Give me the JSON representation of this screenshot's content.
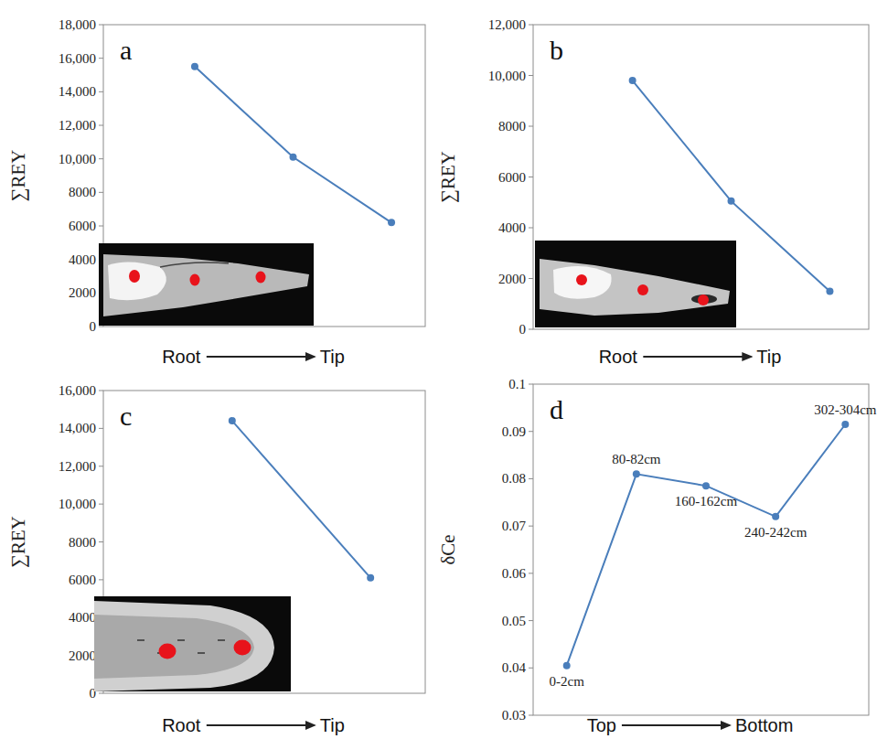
{
  "chart_data": [
    {
      "type": "line",
      "title": "a",
      "ylabel": "∑REY",
      "xlabel": {
        "from": "Root",
        "to": "Tip"
      },
      "categories": [
        null,
        null,
        null
      ],
      "values": [
        15500,
        10100,
        6200
      ],
      "color": "#4a7ebb",
      "marker": "circle",
      "grid": false,
      "tick_labels": "y",
      "ylim": [
        0,
        18000
      ],
      "yticks": [
        0,
        2000,
        4000,
        6000,
        8000,
        {
          "value": 10000,
          "label": "10,000"
        },
        {
          "value": 12000,
          "label": "12,000"
        },
        {
          "value": 14000,
          "label": "14,000"
        },
        {
          "value": 16000,
          "label": "16,000"
        },
        {
          "value": 18000,
          "label": "18,000"
        }
      ]
    },
    {
      "type": "line",
      "title": "b",
      "ylabel": "∑REY",
      "xlabel": {
        "from": "Root",
        "to": "Tip"
      },
      "categories": [
        null,
        null,
        null
      ],
      "values": [
        9800,
        5050,
        1500
      ],
      "color": "#4a7ebb",
      "marker": "circle",
      "grid": false,
      "tick_labels": "y",
      "ylim": [
        0,
        12000
      ],
      "yticks": [
        0,
        2000,
        4000,
        6000,
        8000,
        {
          "value": 10000,
          "label": "10,000"
        },
        {
          "value": 12000,
          "label": "12,000"
        }
      ]
    },
    {
      "type": "line",
      "title": "c",
      "ylabel": "∑REY",
      "xlabel": {
        "from": "Root",
        "to": "Tip"
      },
      "categories": [
        null,
        null
      ],
      "values": [
        14400,
        6100
      ],
      "color": "#4a7ebb",
      "marker": "circle",
      "grid": false,
      "tick_labels": "y",
      "ylim": [
        0,
        16000
      ],
      "yticks": [
        0,
        2000,
        4000,
        6000,
        8000,
        {
          "value": 10000,
          "label": "10,000"
        },
        {
          "value": 12000,
          "label": "12,000"
        },
        {
          "value": 14000,
          "label": "14,000"
        },
        {
          "value": 16000,
          "label": "16,000"
        }
      ]
    },
    {
      "type": "line",
      "title": "d",
      "ylabel": "δCe",
      "xlabel": {
        "from": "Top",
        "to": "Bottom"
      },
      "categories": [
        "0-2cm",
        "80-82cm",
        "160-162cm",
        "240-242cm",
        "302-304cm"
      ],
      "values": [
        0.0405,
        0.081,
        0.0785,
        0.072,
        0.0915
      ],
      "color": "#4a7ebb",
      "marker": "circle",
      "grid": false,
      "tick_labels": "y",
      "ylim": [
        0.03,
        0.1
      ],
      "yticks": [
        0.03,
        0.04,
        0.05,
        0.06,
        0.07,
        0.08,
        0.09,
        0.1
      ]
    }
  ]
}
